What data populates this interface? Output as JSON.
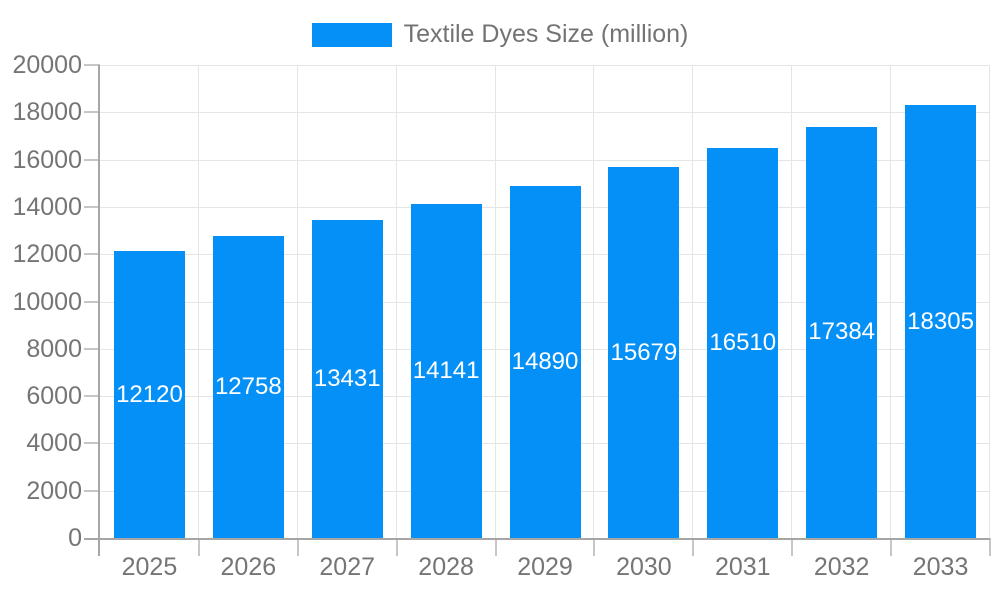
{
  "legend": {
    "label": "Textile Dyes Size (million)"
  },
  "colors": {
    "bar": "#0590f8",
    "bar_label": "#ffffff",
    "grid": "#e5e5e5",
    "axis": "#a6a6a6",
    "tick": "#c6c6c6",
    "text": "#757575",
    "background": "#ffffff"
  },
  "chart_data": {
    "type": "bar",
    "title": "",
    "categories": [
      "2025",
      "2026",
      "2027",
      "2028",
      "2029",
      "2030",
      "2031",
      "2032",
      "2033"
    ],
    "values": [
      12120,
      12758,
      13431,
      14141,
      14890,
      15679,
      16510,
      17384,
      18305
    ],
    "series_name": "Textile Dyes Size (million)",
    "yticks": [
      0,
      2000,
      4000,
      6000,
      8000,
      10000,
      12000,
      14000,
      16000,
      18000,
      20000
    ],
    "ylim": [
      0,
      20000
    ],
    "xlabel": "",
    "ylabel": "",
    "grid": true,
    "legend_position": "top",
    "bar_labels": "inside-center"
  }
}
